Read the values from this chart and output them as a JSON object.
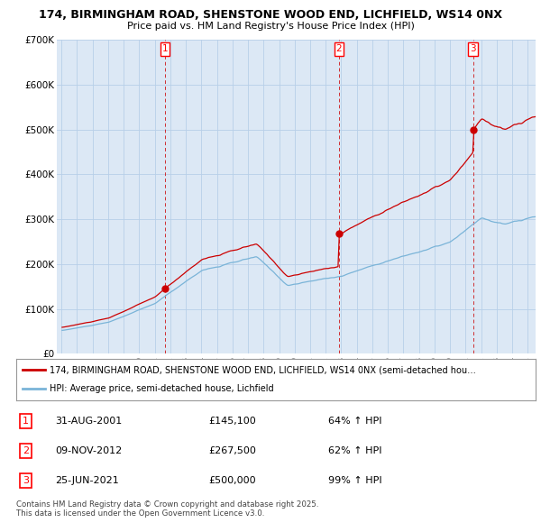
{
  "title1": "174, BIRMINGHAM ROAD, SHENSTONE WOOD END, LICHFIELD, WS14 0NX",
  "title2": "Price paid vs. HM Land Registry's House Price Index (HPI)",
  "legend_line1": "174, BIRMINGHAM ROAD, SHENSTONE WOOD END, LICHFIELD, WS14 0NX (semi-detached hou…",
  "legend_line2": "HPI: Average price, semi-detached house, Lichfield",
  "footer": "Contains HM Land Registry data © Crown copyright and database right 2025.\nThis data is licensed under the Open Government Licence v3.0.",
  "transactions": [
    {
      "num": 1,
      "date": "31-AUG-2001",
      "price": "£145,100",
      "change": "64% ↑ HPI",
      "year": 2001.665
    },
    {
      "num": 2,
      "date": "09-NOV-2012",
      "price": "£267,500",
      "change": "62% ↑ HPI",
      "year": 2012.857
    },
    {
      "num": 3,
      "date": "25-JUN-2021",
      "price": "£500,000",
      "change": "99% ↑ HPI",
      "year": 2021.479
    }
  ],
  "sale_prices": [
    145100,
    267500,
    500000
  ],
  "sale_years": [
    2001.665,
    2012.857,
    2021.479
  ],
  "hpi_color": "#7ab4d8",
  "price_color": "#cc0000",
  "background_color": "#dce8f5",
  "grid_color": "#b8cfe8",
  "ylim": [
    0,
    700000
  ],
  "xlim_start": 1994.7,
  "xlim_end": 2025.5
}
